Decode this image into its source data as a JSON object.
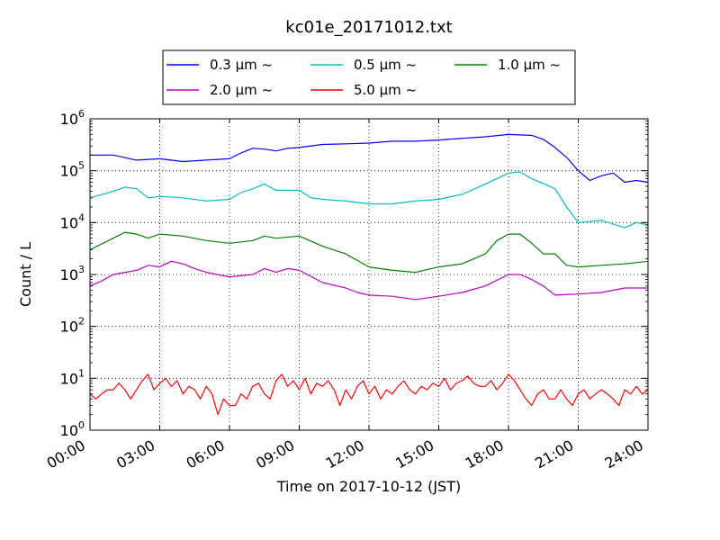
{
  "chart_data": {
    "type": "line",
    "title": "kc01e_20171012.txt",
    "xlabel": "Time on 2017-10-12 (JST)",
    "ylabel": "Count / L",
    "y_scale": "log",
    "ylim": [
      1,
      1000000
    ],
    "xlim": [
      "00:00",
      "24:00"
    ],
    "grid": true,
    "legend_position": "top-center",
    "x_tick_labels": [
      "00:00",
      "03:00",
      "06:00",
      "09:00",
      "12:00",
      "15:00",
      "18:00",
      "21:00",
      "24:00"
    ],
    "y_tick_labels": [
      {
        "base": "10",
        "exp": "0"
      },
      {
        "base": "10",
        "exp": "1"
      },
      {
        "base": "10",
        "exp": "2"
      },
      {
        "base": "10",
        "exp": "3"
      },
      {
        "base": "10",
        "exp": "4"
      },
      {
        "base": "10",
        "exp": "5"
      },
      {
        "base": "10",
        "exp": "6"
      }
    ],
    "series": [
      {
        "name": "0.3 μm ~",
        "color": "#0000ff",
        "points": [
          [
            "00:00",
            200000
          ],
          [
            "01:00",
            200000
          ],
          [
            "02:00",
            160000
          ],
          [
            "03:00",
            170000
          ],
          [
            "04:00",
            150000
          ],
          [
            "05:00",
            160000
          ],
          [
            "06:00",
            170000
          ],
          [
            "06:30",
            220000
          ],
          [
            "07:00",
            270000
          ],
          [
            "07:30",
            260000
          ],
          [
            "08:00",
            240000
          ],
          [
            "08:30",
            270000
          ],
          [
            "09:00",
            280000
          ],
          [
            "10:00",
            320000
          ],
          [
            "11:00",
            330000
          ],
          [
            "12:00",
            340000
          ],
          [
            "13:00",
            370000
          ],
          [
            "14:00",
            370000
          ],
          [
            "15:00",
            390000
          ],
          [
            "16:00",
            420000
          ],
          [
            "17:00",
            450000
          ],
          [
            "18:00",
            500000
          ],
          [
            "19:00",
            480000
          ],
          [
            "19:30",
            400000
          ],
          [
            "20:00",
            280000
          ],
          [
            "20:30",
            180000
          ],
          [
            "21:00",
            100000
          ],
          [
            "21:30",
            65000
          ],
          [
            "22:00",
            80000
          ],
          [
            "22:30",
            90000
          ],
          [
            "23:00",
            60000
          ],
          [
            "23:30",
            65000
          ],
          [
            "24:00",
            60000
          ]
        ]
      },
      {
        "name": "0.5 μm ~",
        "color": "#00bfbf",
        "points": [
          [
            "00:00",
            30000
          ],
          [
            "01:00",
            40000
          ],
          [
            "01:30",
            48000
          ],
          [
            "02:00",
            45000
          ],
          [
            "02:30",
            30000
          ],
          [
            "03:00",
            32000
          ],
          [
            "04:00",
            30000
          ],
          [
            "05:00",
            26000
          ],
          [
            "06:00",
            28000
          ],
          [
            "06:30",
            38000
          ],
          [
            "07:00",
            45000
          ],
          [
            "07:30",
            55000
          ],
          [
            "08:00",
            42000
          ],
          [
            "09:00",
            42000
          ],
          [
            "09:30",
            30000
          ],
          [
            "10:00",
            28000
          ],
          [
            "11:00",
            26000
          ],
          [
            "12:00",
            23000
          ],
          [
            "13:00",
            23000
          ],
          [
            "14:00",
            26000
          ],
          [
            "15:00",
            28000
          ],
          [
            "16:00",
            35000
          ],
          [
            "17:00",
            55000
          ],
          [
            "18:00",
            90000
          ],
          [
            "18:30",
            95000
          ],
          [
            "19:00",
            70000
          ],
          [
            "20:00",
            45000
          ],
          [
            "20:30",
            20000
          ],
          [
            "21:00",
            10000
          ],
          [
            "22:00",
            11000
          ],
          [
            "23:00",
            8000
          ],
          [
            "23:30",
            10000
          ],
          [
            "24:00",
            9000
          ]
        ]
      },
      {
        "name": "1.0 μm ~",
        "color": "#008000",
        "points": [
          [
            "00:00",
            3000
          ],
          [
            "01:00",
            5000
          ],
          [
            "01:30",
            6500
          ],
          [
            "02:00",
            6000
          ],
          [
            "02:30",
            5000
          ],
          [
            "03:00",
            6000
          ],
          [
            "04:00",
            5500
          ],
          [
            "05:00",
            4500
          ],
          [
            "06:00",
            4000
          ],
          [
            "07:00",
            4500
          ],
          [
            "07:30",
            5500
          ],
          [
            "08:00",
            5000
          ],
          [
            "09:00",
            5500
          ],
          [
            "10:00",
            3500
          ],
          [
            "11:00",
            2500
          ],
          [
            "12:00",
            1400
          ],
          [
            "13:00",
            1200
          ],
          [
            "14:00",
            1100
          ],
          [
            "15:00",
            1400
          ],
          [
            "16:00",
            1600
          ],
          [
            "17:00",
            2500
          ],
          [
            "17:30",
            4500
          ],
          [
            "18:00",
            6000
          ],
          [
            "18:30",
            6000
          ],
          [
            "19:00",
            4000
          ],
          [
            "19:30",
            2500
          ],
          [
            "20:00",
            2500
          ],
          [
            "20:30",
            1500
          ],
          [
            "21:00",
            1400
          ],
          [
            "22:00",
            1500
          ],
          [
            "23:00",
            1600
          ],
          [
            "24:00",
            1800
          ]
        ]
      },
      {
        "name": "2.0 μm ~",
        "color": "#bf00bf",
        "points": [
          [
            "00:00",
            600
          ],
          [
            "00:30",
            750
          ],
          [
            "01:00",
            1000
          ],
          [
            "02:00",
            1200
          ],
          [
            "02:30",
            1500
          ],
          [
            "03:00",
            1400
          ],
          [
            "03:30",
            1800
          ],
          [
            "04:00",
            1600
          ],
          [
            "04:30",
            1300
          ],
          [
            "05:00",
            1100
          ],
          [
            "06:00",
            900
          ],
          [
            "07:00",
            1000
          ],
          [
            "07:30",
            1300
          ],
          [
            "08:00",
            1100
          ],
          [
            "08:30",
            1300
          ],
          [
            "09:00",
            1200
          ],
          [
            "10:00",
            700
          ],
          [
            "11:00",
            550
          ],
          [
            "11:30",
            450
          ],
          [
            "12:00",
            400
          ],
          [
            "13:00",
            380
          ],
          [
            "14:00",
            330
          ],
          [
            "15:00",
            380
          ],
          [
            "16:00",
            450
          ],
          [
            "17:00",
            600
          ],
          [
            "18:00",
            1000
          ],
          [
            "18:30",
            1000
          ],
          [
            "19:00",
            800
          ],
          [
            "19:30",
            600
          ],
          [
            "20:00",
            400
          ],
          [
            "21:00",
            420
          ],
          [
            "22:00",
            450
          ],
          [
            "23:00",
            550
          ],
          [
            "24:00",
            550
          ]
        ]
      },
      {
        "name": "5.0 μm ~",
        "color": "#ff0000",
        "points": [
          [
            "00:00",
            5
          ],
          [
            "00:15",
            4
          ],
          [
            "00:30",
            5
          ],
          [
            "00:45",
            6
          ],
          [
            "01:00",
            6
          ],
          [
            "01:15",
            8
          ],
          [
            "01:30",
            6
          ],
          [
            "01:45",
            4
          ],
          [
            "02:00",
            6
          ],
          [
            "02:15",
            9
          ],
          [
            "02:30",
            12
          ],
          [
            "02:45",
            6
          ],
          [
            "03:00",
            8
          ],
          [
            "03:15",
            10
          ],
          [
            "03:30",
            7
          ],
          [
            "03:45",
            9
          ],
          [
            "04:00",
            5
          ],
          [
            "04:15",
            7
          ],
          [
            "04:30",
            6
          ],
          [
            "04:45",
            4
          ],
          [
            "05:00",
            7
          ],
          [
            "05:15",
            5
          ],
          [
            "05:30",
            2
          ],
          [
            "05:45",
            4
          ],
          [
            "06:00",
            3
          ],
          [
            "06:15",
            3
          ],
          [
            "06:30",
            5
          ],
          [
            "06:45",
            4
          ],
          [
            "07:00",
            7
          ],
          [
            "07:15",
            8
          ],
          [
            "07:30",
            5
          ],
          [
            "07:45",
            4
          ],
          [
            "08:00",
            9
          ],
          [
            "08:15",
            12
          ],
          [
            "08:30",
            7
          ],
          [
            "08:45",
            9
          ],
          [
            "09:00",
            6
          ],
          [
            "09:15",
            10
          ],
          [
            "09:30",
            5
          ],
          [
            "09:45",
            8
          ],
          [
            "10:00",
            7
          ],
          [
            "10:15",
            9
          ],
          [
            "10:30",
            6
          ],
          [
            "10:45",
            3
          ],
          [
            "11:00",
            6
          ],
          [
            "11:15",
            4
          ],
          [
            "11:30",
            7
          ],
          [
            "11:45",
            9
          ],
          [
            "12:00",
            5
          ],
          [
            "12:15",
            7
          ],
          [
            "12:30",
            4
          ],
          [
            "12:45",
            6
          ],
          [
            "13:00",
            5
          ],
          [
            "13:15",
            7
          ],
          [
            "13:30",
            9
          ],
          [
            "13:45",
            6
          ],
          [
            "14:00",
            5
          ],
          [
            "14:15",
            7
          ],
          [
            "14:30",
            6
          ],
          [
            "14:45",
            8
          ],
          [
            "15:00",
            7
          ],
          [
            "15:15",
            10
          ],
          [
            "15:30",
            6
          ],
          [
            "15:45",
            8
          ],
          [
            "16:00",
            9
          ],
          [
            "16:15",
            11
          ],
          [
            "16:30",
            8
          ],
          [
            "16:45",
            7
          ],
          [
            "17:00",
            7
          ],
          [
            "17:15",
            9
          ],
          [
            "17:30",
            6
          ],
          [
            "17:45",
            8
          ],
          [
            "18:00",
            12
          ],
          [
            "18:15",
            9
          ],
          [
            "18:30",
            6
          ],
          [
            "18:45",
            4
          ],
          [
            "19:00",
            3
          ],
          [
            "19:15",
            5
          ],
          [
            "19:30",
            6
          ],
          [
            "19:45",
            4
          ],
          [
            "20:00",
            4
          ],
          [
            "20:15",
            6
          ],
          [
            "20:30",
            4
          ],
          [
            "20:45",
            3
          ],
          [
            "21:00",
            5
          ],
          [
            "21:15",
            6
          ],
          [
            "21:30",
            4
          ],
          [
            "21:45",
            5
          ],
          [
            "22:00",
            6
          ],
          [
            "22:15",
            5
          ],
          [
            "22:30",
            4
          ],
          [
            "22:45",
            3
          ],
          [
            "23:00",
            6
          ],
          [
            "23:15",
            5
          ],
          [
            "23:30",
            7
          ],
          [
            "23:45",
            5
          ],
          [
            "24:00",
            6
          ]
        ]
      }
    ]
  }
}
